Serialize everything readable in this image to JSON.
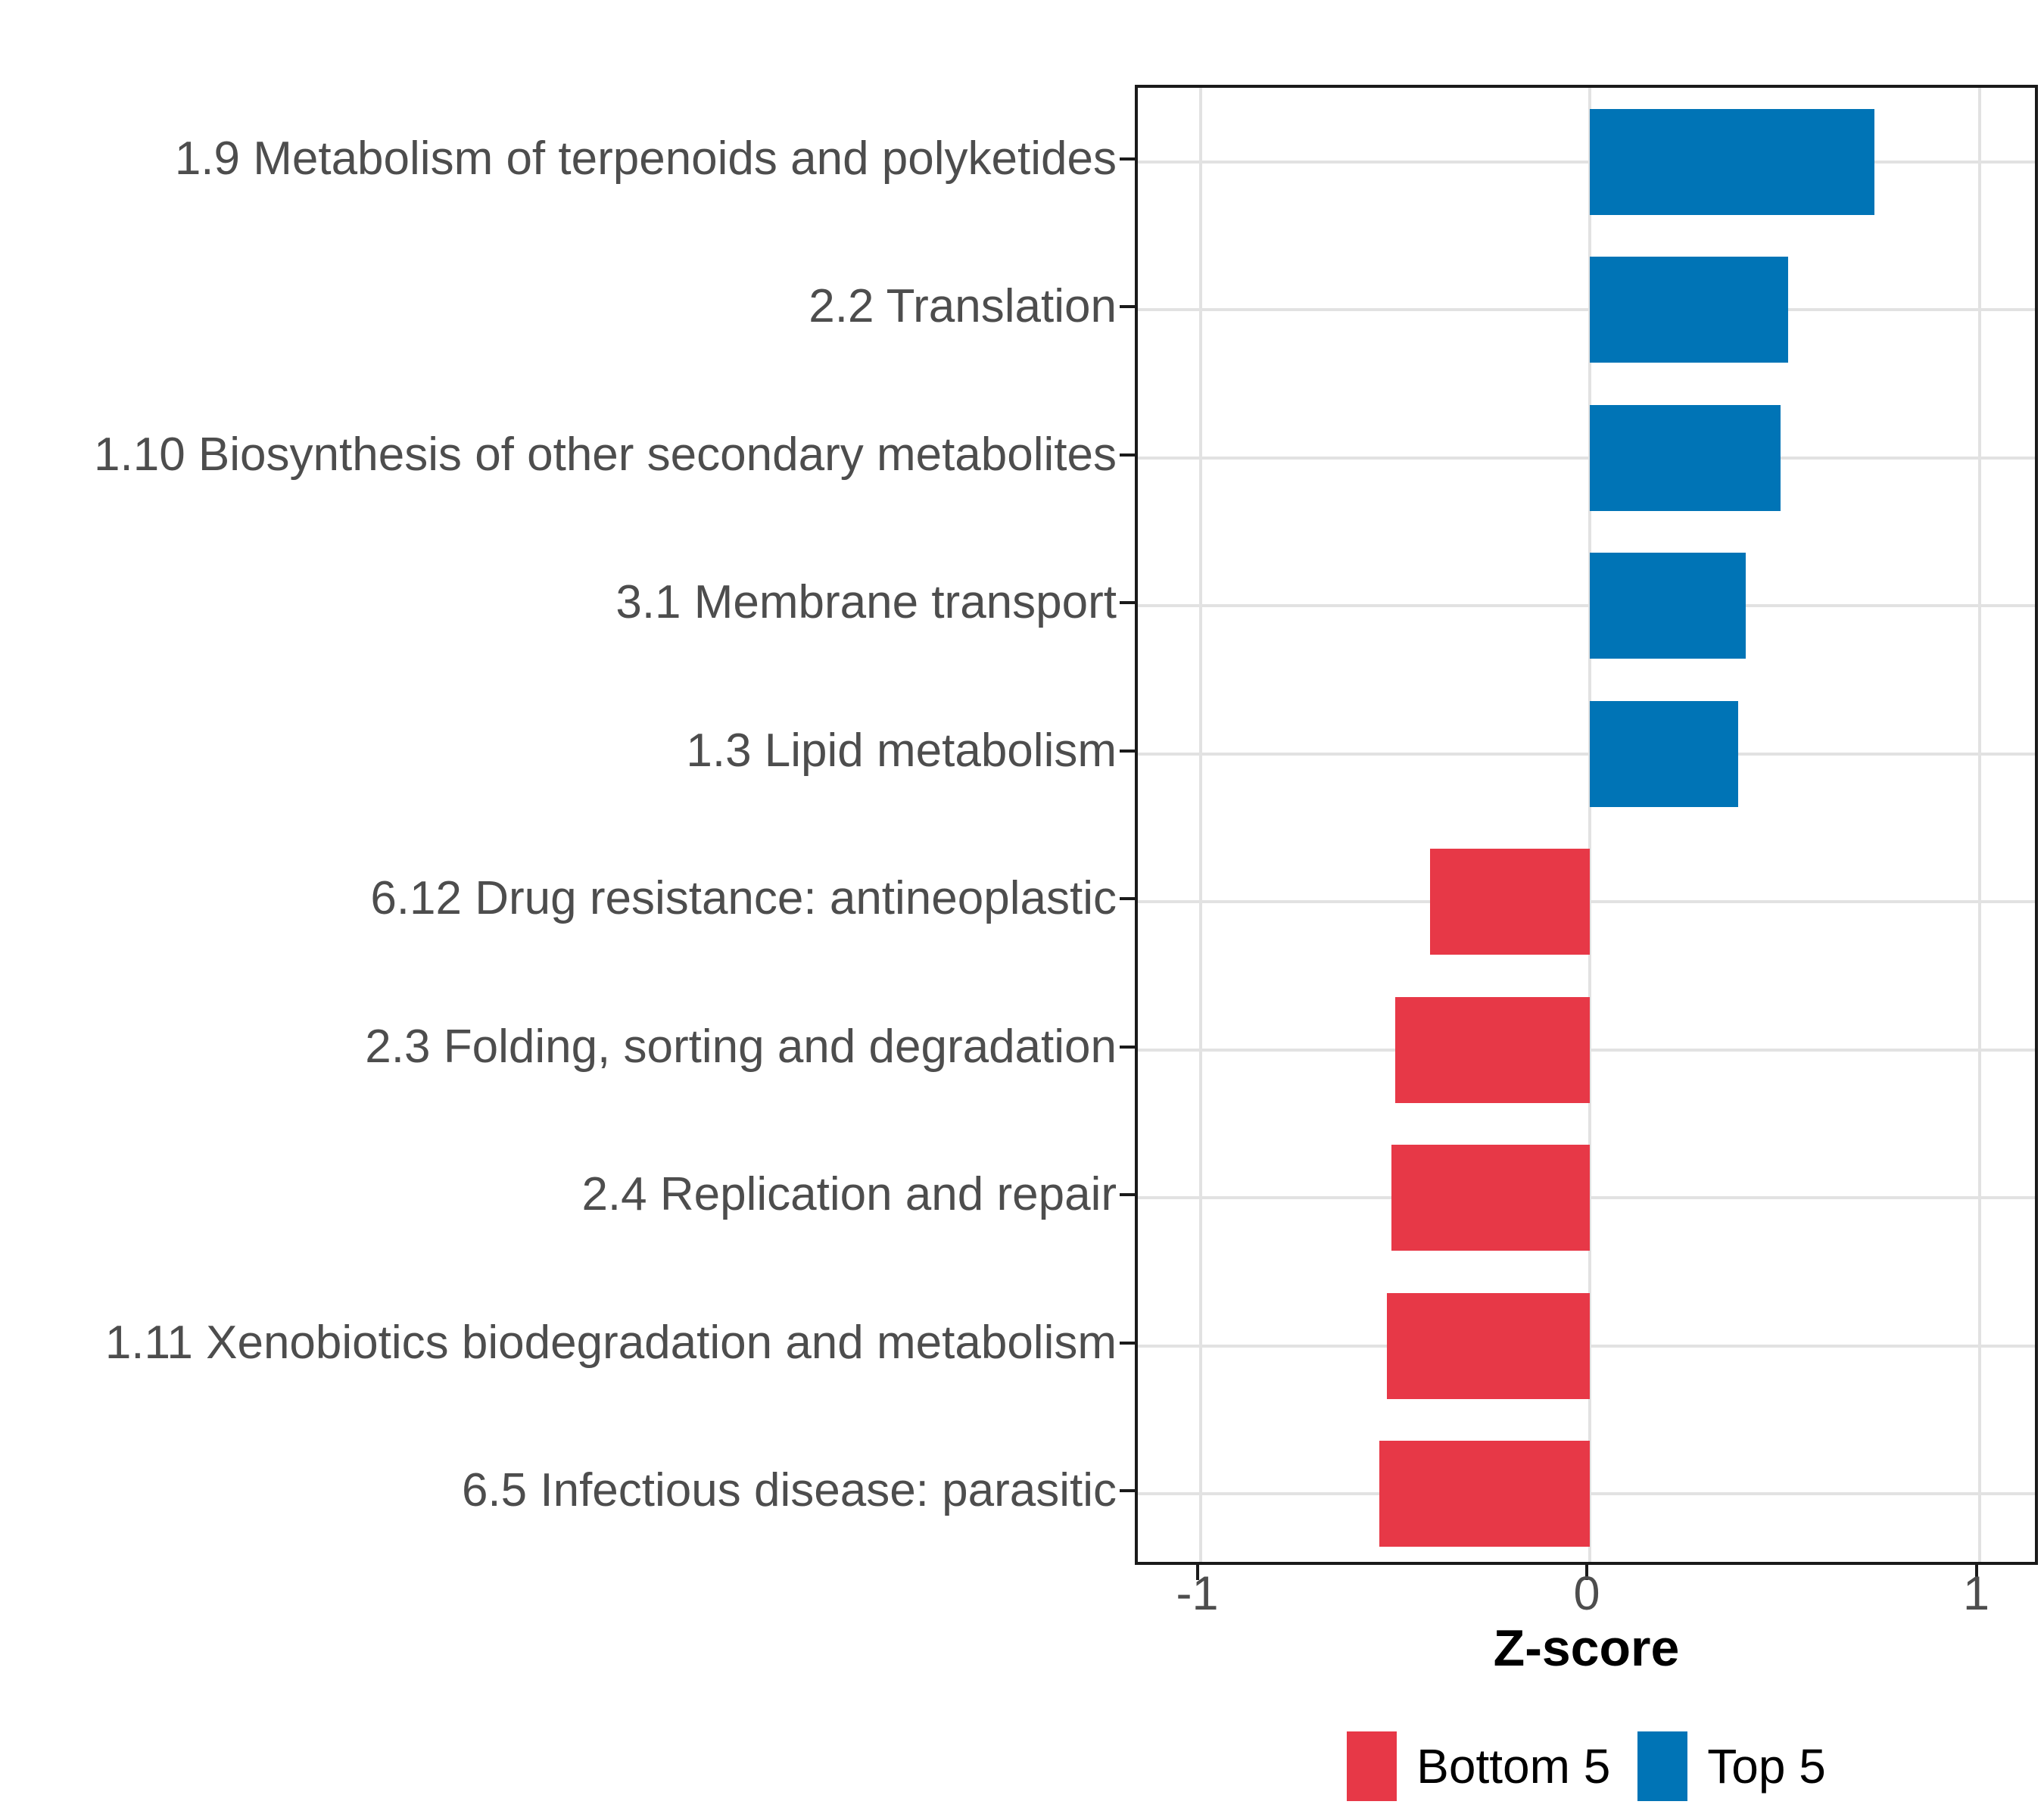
{
  "chart_data": {
    "type": "bar",
    "orientation": "horizontal",
    "xlabel": "Z-score",
    "ylabel": "",
    "xlim": [
      -1.16,
      1.16
    ],
    "x_ticks": [
      -1,
      0,
      1
    ],
    "x_tick_labels": [
      "-1",
      "0",
      "1"
    ],
    "grid": true,
    "legend_position": "bottom",
    "categories": [
      "1.9 Metabolism of terpenoids and polyketides",
      "2.2 Translation",
      "1.10 Biosynthesis of other secondary metabolites",
      "3.1 Membrane transport",
      "1.3 Lipid metabolism",
      "6.12 Drug resistance: antineoplastic",
      "2.3 Folding, sorting and degradation",
      "2.4 Replication and repair",
      "1.11 Xenobiotics biodegradation and metabolism",
      "6.5 Infectious disease: parasitic"
    ],
    "bars": [
      {
        "category": "1.9 Metabolism of terpenoids and polyketides",
        "value": 0.73,
        "group": "Top 5"
      },
      {
        "category": "2.2 Translation",
        "value": 0.51,
        "group": "Top 5"
      },
      {
        "category": "1.10 Biosynthesis of other secondary metabolites",
        "value": 0.49,
        "group": "Top 5"
      },
      {
        "category": "3.1 Membrane transport",
        "value": 0.4,
        "group": "Top 5"
      },
      {
        "category": "1.3 Lipid metabolism",
        "value": 0.38,
        "group": "Top 5"
      },
      {
        "category": "6.12 Drug resistance: antineoplastic",
        "value": -0.41,
        "group": "Bottom 5"
      },
      {
        "category": "2.3 Folding, sorting and degradation",
        "value": -0.5,
        "group": "Bottom 5"
      },
      {
        "category": "2.4 Replication and repair",
        "value": -0.51,
        "group": "Bottom 5"
      },
      {
        "category": "1.11 Xenobiotics biodegradation and metabolism",
        "value": -0.52,
        "group": "Bottom 5"
      },
      {
        "category": "6.5 Infectious disease: parasitic",
        "value": -0.54,
        "group": "Bottom 5"
      }
    ],
    "group_colors": {
      "Top 5": "#0074B6",
      "Bottom 5": "#E73847"
    }
  },
  "legend": {
    "items": [
      {
        "label": "Bottom 5",
        "color": "#E73847"
      },
      {
        "label": "Top 5",
        "color": "#0074B6"
      }
    ]
  },
  "colors": {
    "background": "#FFFFFF",
    "panel_border": "#1A1A1A",
    "gridline": "#E2E2E2",
    "axis_text": "#4D4D4D",
    "title_text": "#000000"
  }
}
